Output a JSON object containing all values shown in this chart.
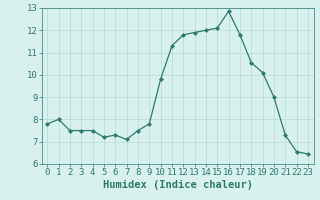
{
  "x": [
    0,
    1,
    2,
    3,
    4,
    5,
    6,
    7,
    8,
    9,
    10,
    11,
    12,
    13,
    14,
    15,
    16,
    17,
    18,
    19,
    20,
    21,
    22,
    23
  ],
  "y": [
    7.8,
    8.0,
    7.5,
    7.5,
    7.5,
    7.2,
    7.3,
    7.1,
    7.5,
    7.8,
    9.8,
    11.3,
    11.8,
    11.9,
    12.0,
    12.1,
    12.85,
    11.8,
    10.55,
    10.1,
    9.0,
    7.3,
    6.55,
    6.45
  ],
  "line_color": "#2d7a6e",
  "marker": "D",
  "marker_size": 2.0,
  "bg_color": "#d8f0ee",
  "grid_color": "#b8d8d4",
  "xlabel": "Humidex (Indice chaleur)",
  "xlim": [
    -0.5,
    23.5
  ],
  "ylim": [
    6,
    13
  ],
  "yticks": [
    6,
    7,
    8,
    9,
    10,
    11,
    12,
    13
  ],
  "xticks": [
    0,
    1,
    2,
    3,
    4,
    5,
    6,
    7,
    8,
    9,
    10,
    11,
    12,
    13,
    14,
    15,
    16,
    17,
    18,
    19,
    20,
    21,
    22,
    23
  ],
  "tick_color": "#2d7a6e",
  "label_color": "#2d7a6e",
  "font_size": 6.5,
  "xlabel_fontsize": 7.5
}
